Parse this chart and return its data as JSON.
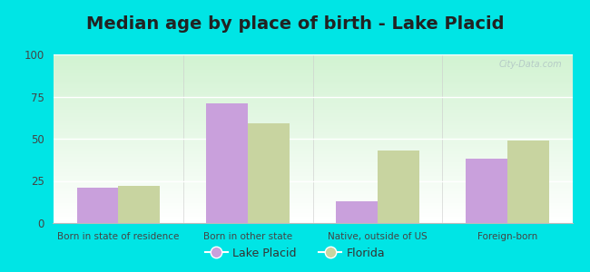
{
  "title": "Median age by place of birth - Lake Placid",
  "categories": [
    "Born in state of residence",
    "Born in other state",
    "Native, outside of US",
    "Foreign-born"
  ],
  "lake_placid_values": [
    21,
    71,
    13,
    38
  ],
  "florida_values": [
    22,
    59,
    43,
    49
  ],
  "lake_placid_color": "#c9a0dc",
  "florida_color": "#c8d4a0",
  "ylim": [
    0,
    100
  ],
  "yticks": [
    0,
    25,
    50,
    75,
    100
  ],
  "background_color": "#00e5e5",
  "legend_lake_placid": "Lake Placid",
  "legend_florida": "Florida",
  "title_fontsize": 14,
  "bar_width": 0.32,
  "watermark": "City-Data.com"
}
